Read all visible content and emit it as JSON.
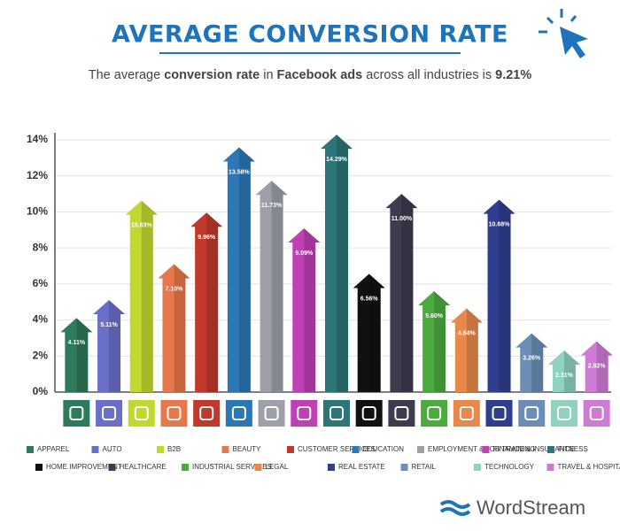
{
  "title": "AVERAGE CONVERSION RATE",
  "subtitle": [
    {
      "text": "The average ",
      "bold": false
    },
    {
      "text": "conversion rate",
      "bold": true
    },
    {
      "text": " in ",
      "bold": false
    },
    {
      "text": "Facebook ads",
      "bold": true
    },
    {
      "text": " across all industries is ",
      "bold": false
    },
    {
      "text": "9.21%",
      "bold": true
    }
  ],
  "brand": "WordStream",
  "chart_data": {
    "type": "arrow-bar",
    "categories": [
      "APPAREL",
      "AUTO",
      "B2B",
      "BEAUTY",
      "CUSTOMER SERVICES",
      "EDUCATION",
      "EMPLOYMENT & JOB TRAINING",
      "FINANCE & INSURANCE",
      "FITNESS",
      "HOME IMPROVEMENT",
      "HEALTHCARE",
      "INDUSTRIAL SERVICES",
      "LEGAL",
      "REAL ESTATE",
      "RETAIL",
      "TECHNOLOGY",
      "TRAVEL & HOSPITALITY"
    ],
    "values": [
      4.11,
      5.11,
      10.63,
      7.1,
      9.96,
      13.58,
      11.73,
      9.09,
      14.29,
      6.56,
      11.0,
      5.6,
      4.64,
      10.68,
      3.26,
      2.31,
      2.82
    ],
    "value_labels": [
      "4.11%",
      "5.11%",
      "10.63%",
      "7.10%",
      "9.96%",
      "13.58%",
      "11.73%",
      "9.09%",
      "14.29%",
      "6.56%",
      "11.00%",
      "5.60%",
      "4.64%",
      "10.68%",
      "3.26%",
      "2.31%",
      "2.82%"
    ],
    "colors": [
      "#2e7a5c",
      "#6a6fc9",
      "#c3d82f",
      "#e8784b",
      "#c0392b",
      "#2c78b6",
      "#9ea0a9",
      "#bf3fb4",
      "#2c7677",
      "#111111",
      "#3e3a4f",
      "#4cab3f",
      "#e8894b",
      "#2f3e8e",
      "#6b8db6",
      "#8fd2bf",
      "#cf7bd6"
    ],
    "ylim": [
      0,
      14
    ],
    "yticks": [
      {
        "value": 0,
        "label": "0%"
      },
      {
        "value": 2,
        "label": "2%"
      },
      {
        "value": 4,
        "label": "4%"
      },
      {
        "value": 6,
        "label": "6%"
      },
      {
        "value": 8,
        "label": "8%"
      },
      {
        "value": 10,
        "label": "10%"
      },
      {
        "value": 12,
        "label": "12%"
      },
      {
        "value": 14,
        "label": "14%"
      }
    ],
    "grid": true
  }
}
